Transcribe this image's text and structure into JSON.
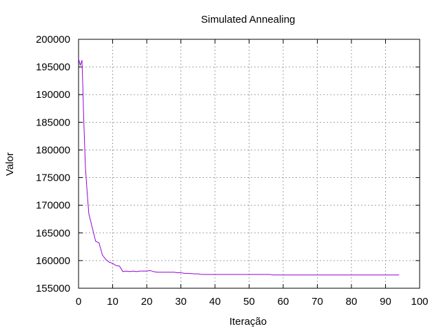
{
  "chart_data": {
    "type": "line",
    "title": "Simulated Annealing",
    "xlabel": "Iteração",
    "ylabel": "Valor",
    "xlim": [
      0,
      100
    ],
    "ylim": [
      155000,
      200000
    ],
    "x_ticks": [
      0,
      10,
      20,
      30,
      40,
      50,
      60,
      70,
      80,
      90,
      100
    ],
    "y_ticks": [
      155000,
      160000,
      165000,
      170000,
      175000,
      180000,
      185000,
      190000,
      195000,
      200000
    ],
    "grid": true,
    "legend": "none",
    "series": [
      {
        "color": "#9400d3",
        "points": [
          [
            0,
            196500
          ],
          [
            0.5,
            195300
          ],
          [
            1,
            196200
          ],
          [
            1.2,
            192500
          ],
          [
            1.5,
            186000
          ],
          [
            2,
            177000
          ],
          [
            2.5,
            172500
          ],
          [
            3,
            168500
          ],
          [
            4,
            166000
          ],
          [
            5,
            163500
          ],
          [
            6,
            163200
          ],
          [
            7,
            161000
          ],
          [
            8,
            160200
          ],
          [
            9,
            159700
          ],
          [
            10,
            159500
          ],
          [
            11,
            159100
          ],
          [
            12,
            159000
          ],
          [
            13,
            158000
          ],
          [
            14,
            158100
          ],
          [
            15,
            158000
          ],
          [
            16,
            158100
          ],
          [
            17,
            158000
          ],
          [
            18,
            158100
          ],
          [
            19,
            158100
          ],
          [
            20,
            158100
          ],
          [
            21,
            158200
          ],
          [
            22,
            158000
          ],
          [
            23,
            157900
          ],
          [
            24,
            157900
          ],
          [
            25,
            157900
          ],
          [
            26,
            157900
          ],
          [
            27,
            157900
          ],
          [
            28,
            157900
          ],
          [
            29,
            157800
          ],
          [
            30,
            157800
          ],
          [
            31,
            157700
          ],
          [
            32,
            157700
          ],
          [
            34,
            157600
          ],
          [
            35,
            157600
          ],
          [
            36,
            157500
          ],
          [
            40,
            157500
          ],
          [
            45,
            157500
          ],
          [
            50,
            157500
          ],
          [
            55,
            157500
          ],
          [
            56,
            157500
          ],
          [
            57,
            157400
          ],
          [
            60,
            157400
          ],
          [
            70,
            157400
          ],
          [
            80,
            157400
          ],
          [
            90,
            157400
          ],
          [
            94,
            157400
          ]
        ]
      }
    ]
  }
}
